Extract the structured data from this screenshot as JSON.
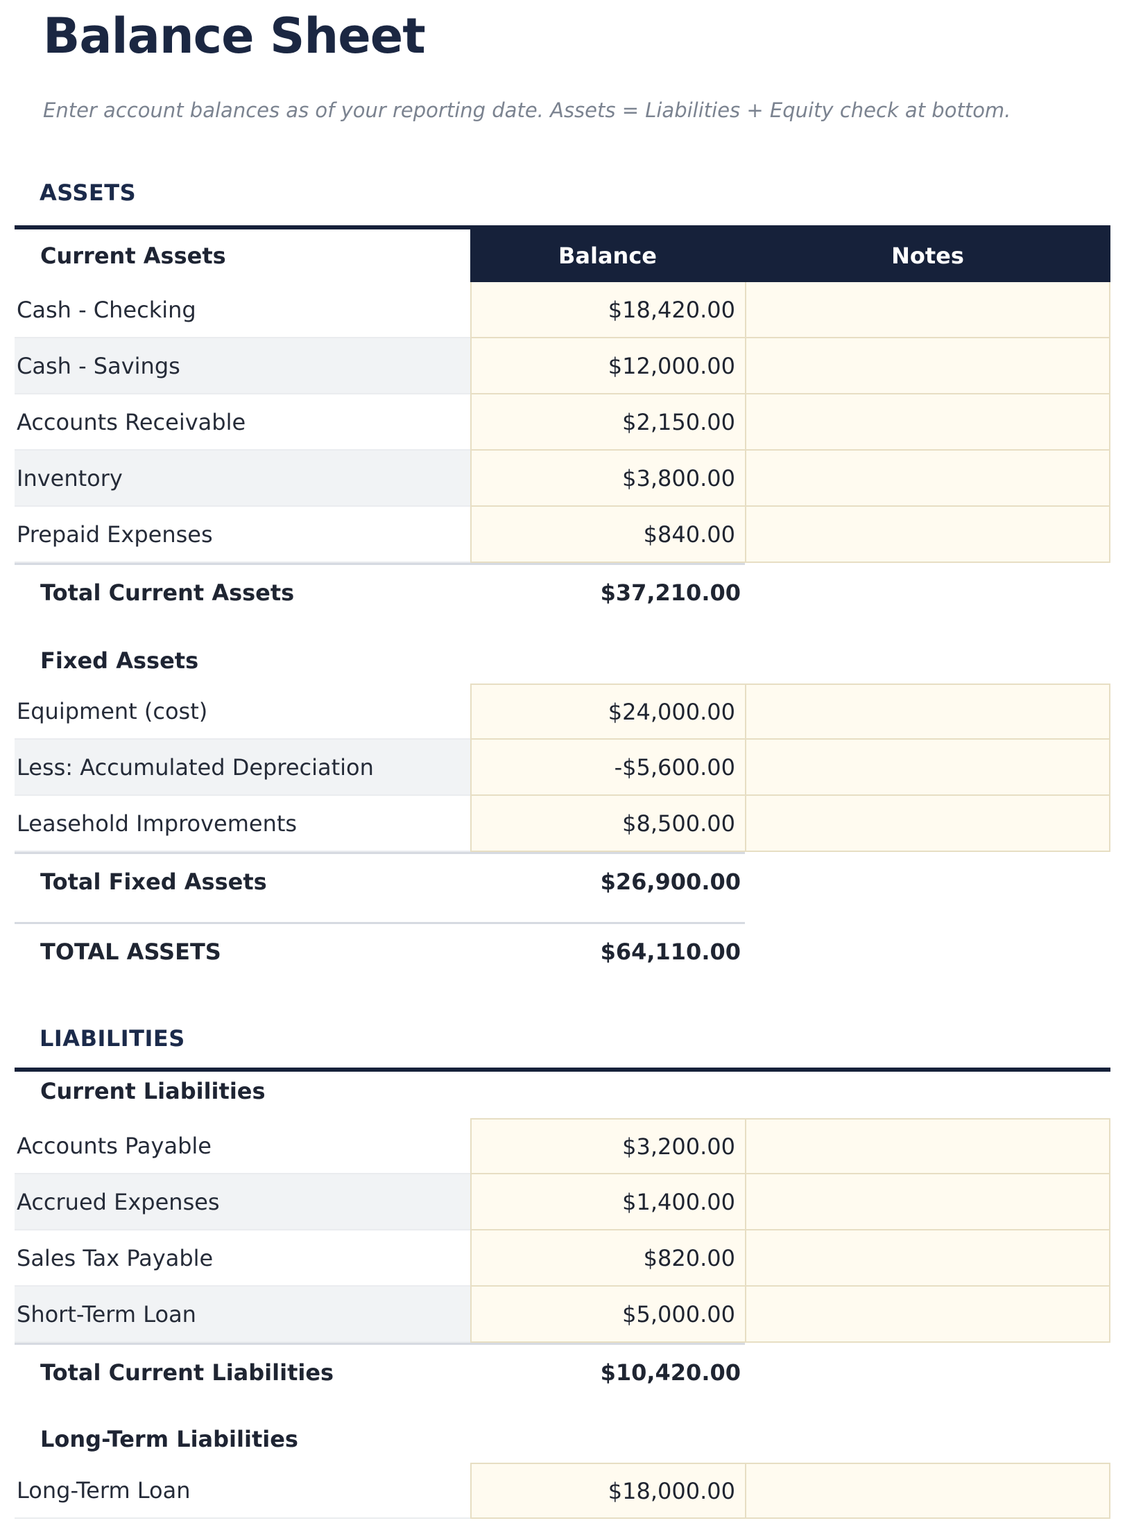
{
  "page": {
    "title": "Balance Sheet",
    "subtitle": "Enter account balances as of your reporting date. Assets = Liabilities + Equity check at bottom."
  },
  "colors": {
    "navy": "#16213a",
    "cream_cell": "#fffbf0",
    "cream_border": "#e7dec3",
    "alt_row": "#f1f3f5",
    "divider": "#d6dae1",
    "heading_text": "#1b2a4a"
  },
  "assets": {
    "section_label": "ASSETS",
    "current": {
      "header": "Current Assets",
      "columns": [
        "Balance",
        "Notes"
      ],
      "rows": [
        {
          "label": "Cash - Checking",
          "balance": "$18,420.00",
          "notes": ""
        },
        {
          "label": "Cash - Savings",
          "balance": "$12,000.00",
          "notes": ""
        },
        {
          "label": "Accounts Receivable",
          "balance": "$2,150.00",
          "notes": ""
        },
        {
          "label": "Inventory",
          "balance": "$3,800.00",
          "notes": ""
        },
        {
          "label": "Prepaid Expenses",
          "balance": "$840.00",
          "notes": ""
        }
      ],
      "total_label": "Total Current Assets",
      "total_value": "$37,210.00"
    },
    "fixed": {
      "header": "Fixed Assets",
      "rows": [
        {
          "label": "Equipment (cost)",
          "balance": "$24,000.00",
          "notes": ""
        },
        {
          "label": "Less: Accumulated Depreciation",
          "balance": "-$5,600.00",
          "notes": ""
        },
        {
          "label": "Leasehold Improvements",
          "balance": "$8,500.00",
          "notes": ""
        }
      ],
      "total_label": "Total Fixed Assets",
      "total_value": "$26,900.00"
    },
    "grand_total_label": "TOTAL ASSETS",
    "grand_total_value": "$64,110.00"
  },
  "liabilities": {
    "section_label": "LIABILITIES",
    "current": {
      "header": "Current Liabilities",
      "rows": [
        {
          "label": "Accounts Payable",
          "balance": "$3,200.00",
          "notes": ""
        },
        {
          "label": "Accrued Expenses",
          "balance": "$1,400.00",
          "notes": ""
        },
        {
          "label": "Sales Tax Payable",
          "balance": "$820.00",
          "notes": ""
        },
        {
          "label": "Short-Term Loan",
          "balance": "$5,000.00",
          "notes": ""
        }
      ],
      "total_label": "Total Current Liabilities",
      "total_value": "$10,420.00"
    },
    "long_term": {
      "header": "Long-Term Liabilities",
      "rows": [
        {
          "label": "Long-Term Loan",
          "balance": "$18,000.00",
          "notes": ""
        }
      ]
    }
  }
}
